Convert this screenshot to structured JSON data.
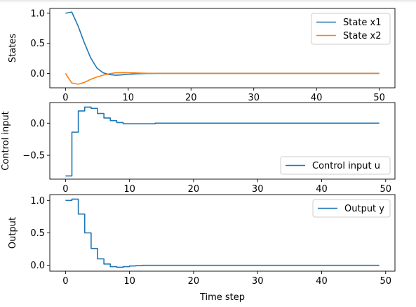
{
  "chart_data": [
    {
      "type": "line",
      "ylabel": "States",
      "xlabel": "",
      "xlim": [
        -2.5,
        52.5
      ],
      "ylim": [
        -0.24,
        1.08
      ],
      "xticks": [
        0,
        10,
        20,
        30,
        40,
        50
      ],
      "yticks": [
        0.0,
        0.5,
        1.0
      ],
      "ytick_labels": [
        "0.0",
        "0.5",
        "1.0"
      ],
      "legend": "top-right",
      "series": [
        {
          "name": "State x1",
          "color": "#1f77b4",
          "x": [
            0,
            1,
            2,
            3,
            4,
            5,
            6,
            7,
            8,
            9,
            10,
            11,
            12,
            13,
            14,
            15,
            20,
            25,
            30,
            35,
            40,
            45,
            50
          ],
          "y": [
            1.0,
            1.02,
            0.79,
            0.51,
            0.26,
            0.09,
            0.01,
            -0.02,
            -0.03,
            -0.025,
            -0.015,
            -0.008,
            -0.004,
            -0.002,
            -0.001,
            0.0,
            0.0,
            0.0,
            0.0,
            0.0,
            0.0,
            0.0,
            0.0
          ]
        },
        {
          "name": "State x2",
          "color": "#ff7f0e",
          "x": [
            0,
            1,
            2,
            3,
            4,
            5,
            6,
            7,
            8,
            9,
            10,
            11,
            12,
            13,
            14,
            15,
            20,
            25,
            30,
            35,
            40,
            45,
            50
          ],
          "y": [
            0.0,
            -0.16,
            -0.18,
            -0.15,
            -0.1,
            -0.06,
            -0.03,
            -0.005,
            0.01,
            0.012,
            0.01,
            0.007,
            0.004,
            0.002,
            0.001,
            0.0,
            0.0,
            0.0,
            0.0,
            0.0,
            0.0,
            0.0,
            0.0
          ]
        }
      ]
    },
    {
      "type": "line",
      "step": true,
      "ylabel": "Control input",
      "xlabel": "",
      "xlim": [
        -2.45,
        51.45
      ],
      "ylim": [
        -0.87,
        0.32
      ],
      "xticks": [
        0,
        10,
        20,
        30,
        40,
        50
      ],
      "yticks": [
        -0.5,
        0.0
      ],
      "ytick_labels": [
        "−0.5",
        "0.0"
      ],
      "legend": "lower-right",
      "series": [
        {
          "name": "Control input u",
          "color": "#1f77b4",
          "x": [
            0,
            1,
            2,
            3,
            4,
            5,
            6,
            7,
            8,
            9,
            10,
            11,
            12,
            13,
            14,
            49
          ],
          "y": [
            -0.82,
            -0.14,
            0.19,
            0.25,
            0.23,
            0.15,
            0.08,
            0.04,
            0.01,
            -0.01,
            -0.01,
            -0.01,
            -0.01,
            -0.01,
            0.0,
            0.0
          ]
        }
      ]
    },
    {
      "type": "line",
      "step": true,
      "ylabel": "Output",
      "xlabel": "Time step",
      "xlim": [
        -2.45,
        51.45
      ],
      "ylim": [
        -0.09,
        1.09
      ],
      "xticks": [
        0,
        10,
        20,
        30,
        40,
        50
      ],
      "yticks": [
        0.0,
        0.5,
        1.0
      ],
      "ytick_labels": [
        "0.0",
        "0.5",
        "1.0"
      ],
      "legend": "top-right",
      "series": [
        {
          "name": "Output y",
          "color": "#1f77b4",
          "x": [
            0,
            1,
            2,
            3,
            4,
            5,
            6,
            7,
            8,
            9,
            10,
            11,
            12,
            49
          ],
          "y": [
            1.0,
            1.02,
            0.79,
            0.5,
            0.26,
            0.1,
            0.02,
            -0.02,
            -0.03,
            -0.02,
            -0.01,
            -0.005,
            0.0,
            0.0
          ]
        }
      ]
    }
  ]
}
